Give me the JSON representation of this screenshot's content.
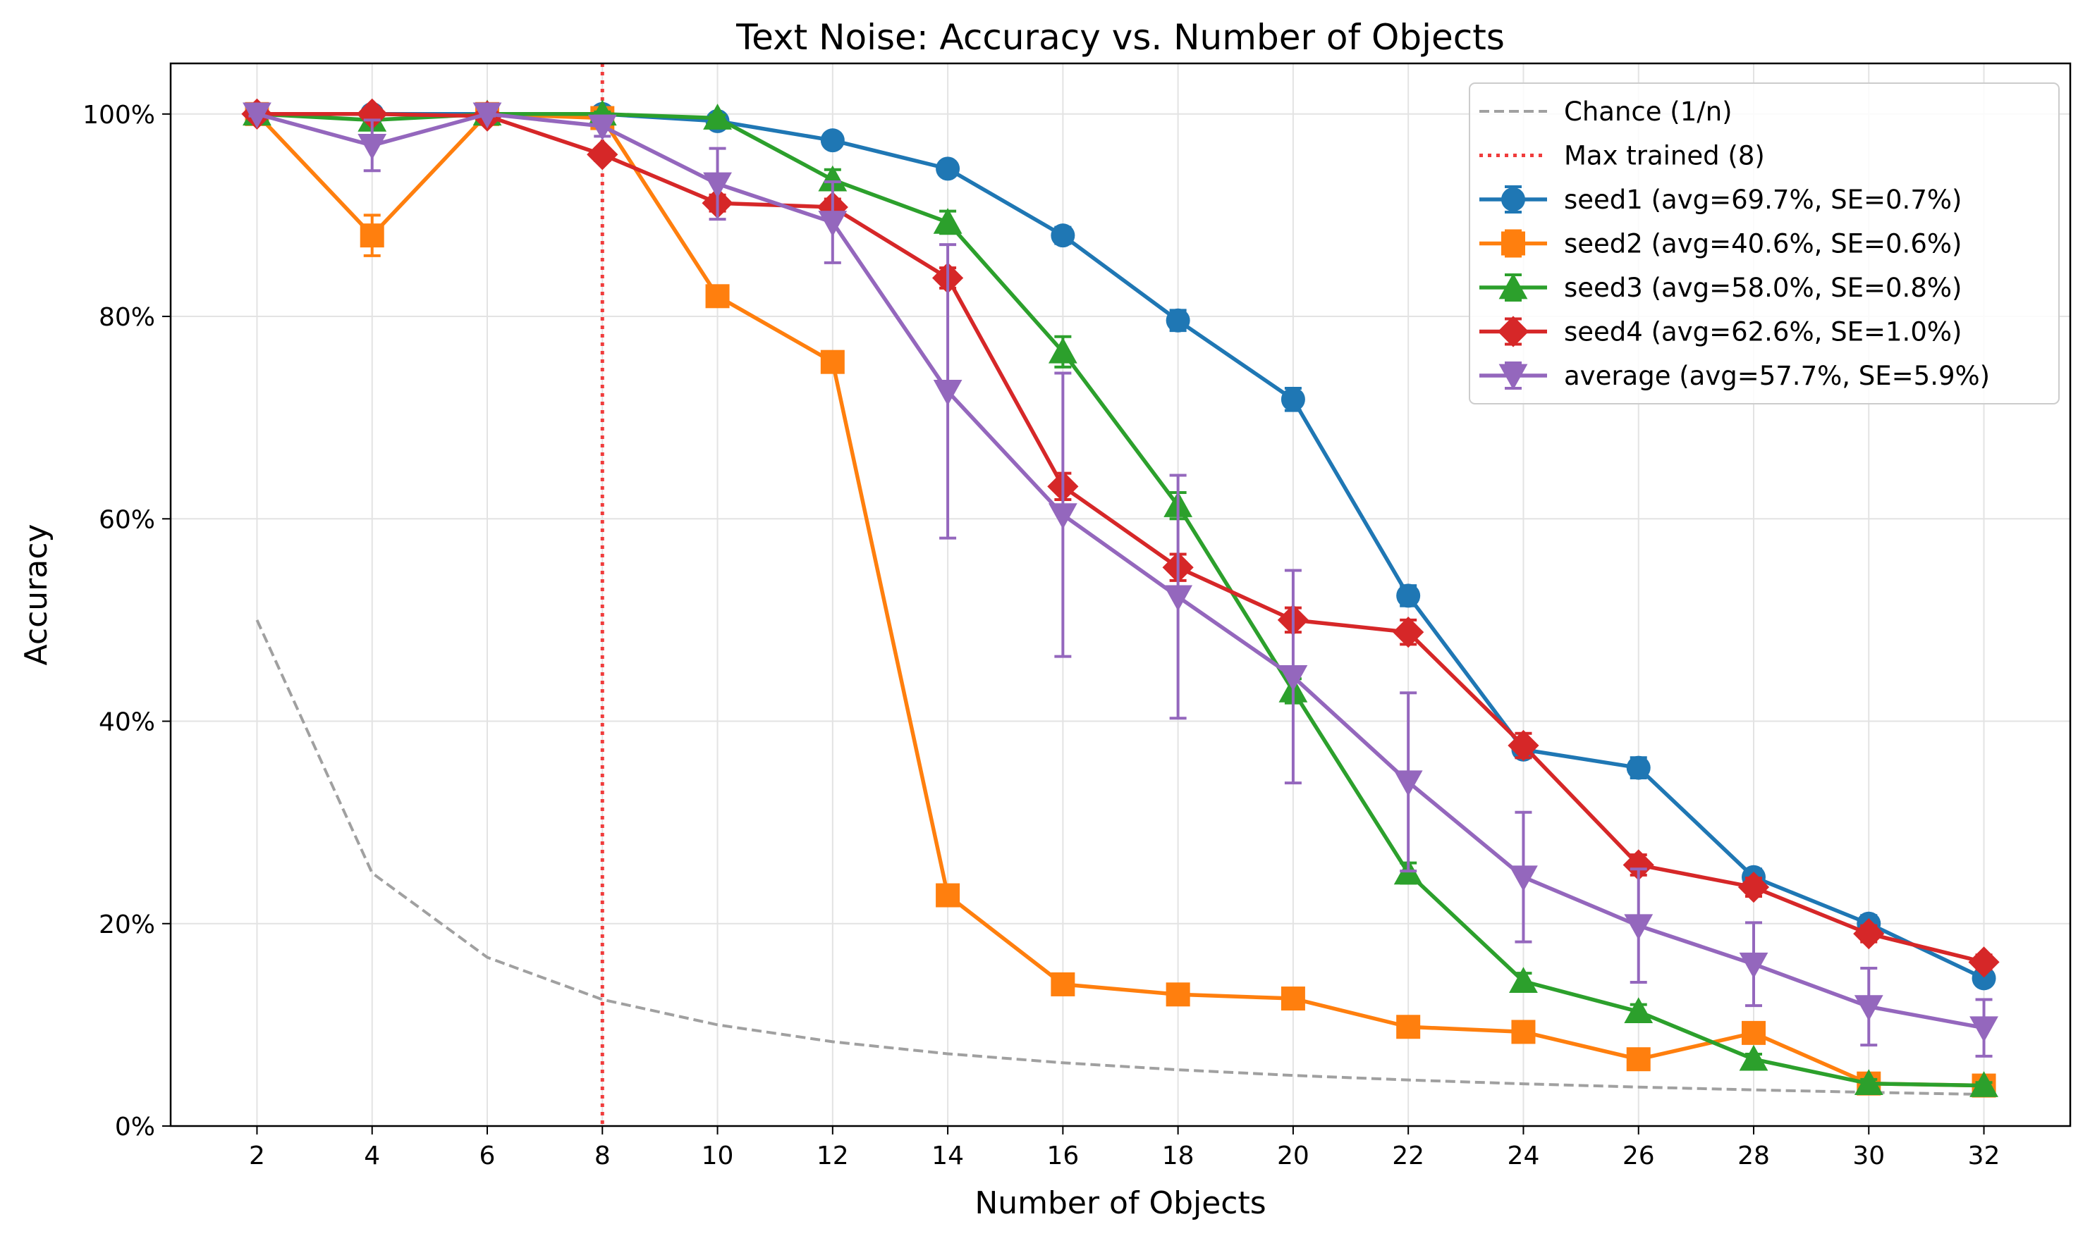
{
  "chart_data": {
    "type": "line",
    "title": "Text Noise: Accuracy vs. Number of Objects",
    "xlabel": "Number of Objects",
    "ylabel": "Accuracy",
    "x": [
      2,
      4,
      6,
      8,
      10,
      12,
      14,
      16,
      18,
      20,
      22,
      24,
      26,
      28,
      30,
      32
    ],
    "xlim": [
      0.5,
      33.5
    ],
    "ylim": [
      0,
      1.05
    ],
    "yticks": [
      0,
      0.2,
      0.4,
      0.6,
      0.8,
      1.0
    ],
    "ytick_labels": [
      "0%",
      "20%",
      "40%",
      "60%",
      "80%",
      "100%"
    ],
    "xtick_labels": [
      "2",
      "4",
      "6",
      "8",
      "10",
      "12",
      "14",
      "16",
      "18",
      "20",
      "22",
      "24",
      "26",
      "28",
      "30",
      "32"
    ],
    "grid": true,
    "legend_position": "top-right",
    "reference_lines": [
      {
        "name": "Chance (1/n)",
        "style": "dashed",
        "color": "#a0a0a0",
        "values": [
          0.5,
          0.25,
          0.1667,
          0.125,
          0.1,
          0.0833,
          0.0714,
          0.0625,
          0.0556,
          0.05,
          0.0455,
          0.0417,
          0.0385,
          0.0357,
          0.0333,
          0.03125
        ]
      },
      {
        "name": "Max trained (8)",
        "style": "dotted",
        "color": "#f03c3c",
        "x": 8
      }
    ],
    "series": [
      {
        "name": "seed1 (avg=69.7%, SE=0.7%)",
        "marker": "circle",
        "color": "#1f77b4",
        "values": [
          1.0,
          1.0,
          1.0,
          1.0,
          0.993,
          0.974,
          0.946,
          0.88,
          0.796,
          0.718,
          0.524,
          0.372,
          0.354,
          0.246,
          0.2,
          0.146
        ],
        "errors": [
          0.002,
          0.002,
          0.002,
          0.002,
          0.003,
          0.005,
          0.006,
          0.008,
          0.01,
          0.011,
          0.01,
          0.008,
          0.01,
          0.008,
          0.008,
          0.006
        ]
      },
      {
        "name": "seed2 (avg=40.6%, SE=0.6%)",
        "marker": "square",
        "color": "#ff7f0e",
        "values": [
          1.0,
          0.88,
          1.0,
          0.996,
          0.82,
          0.755,
          0.228,
          0.14,
          0.13,
          0.126,
          0.098,
          0.093,
          0.066,
          0.092,
          0.042,
          0.04
        ],
        "errors": [
          0.002,
          0.02,
          0.002,
          0.003,
          0.006,
          0.006,
          0.006,
          0.005,
          0.005,
          0.005,
          0.004,
          0.004,
          0.004,
          0.004,
          0.003,
          0.003
        ]
      },
      {
        "name": "seed3 (avg=58.0%, SE=0.8%)",
        "marker": "triangle-up",
        "color": "#2ca02c",
        "values": [
          1.0,
          0.994,
          1.0,
          1.0,
          0.996,
          0.935,
          0.893,
          0.765,
          0.613,
          0.43,
          0.25,
          0.143,
          0.113,
          0.066,
          0.042,
          0.04
        ],
        "errors": [
          0.002,
          0.003,
          0.002,
          0.002,
          0.003,
          0.01,
          0.011,
          0.015,
          0.013,
          0.012,
          0.01,
          0.008,
          0.007,
          0.005,
          0.004,
          0.003
        ]
      },
      {
        "name": "seed4 (avg=62.6%, SE=1.0%)",
        "marker": "diamond",
        "color": "#d62728",
        "values": [
          1.0,
          1.0,
          0.998,
          0.96,
          0.912,
          0.908,
          0.838,
          0.632,
          0.552,
          0.5,
          0.488,
          0.376,
          0.258,
          0.236,
          0.19,
          0.162
        ],
        "errors": [
          0.002,
          0.002,
          0.003,
          0.006,
          0.008,
          0.008,
          0.01,
          0.013,
          0.013,
          0.012,
          0.012,
          0.012,
          0.01,
          0.009,
          0.008,
          0.007
        ]
      },
      {
        "name": "average (avg=57.7%, SE=5.9%)",
        "marker": "triangle-down",
        "color": "#9467bd",
        "values": [
          1.0,
          0.969,
          1.0,
          0.988,
          0.931,
          0.893,
          0.726,
          0.604,
          0.523,
          0.444,
          0.34,
          0.246,
          0.198,
          0.16,
          0.118,
          0.097
        ],
        "errors": [
          0.002,
          0.025,
          0.002,
          0.01,
          0.035,
          0.04,
          0.145,
          0.14,
          0.12,
          0.105,
          0.088,
          0.064,
          0.056,
          0.041,
          0.038,
          0.028
        ]
      }
    ]
  }
}
